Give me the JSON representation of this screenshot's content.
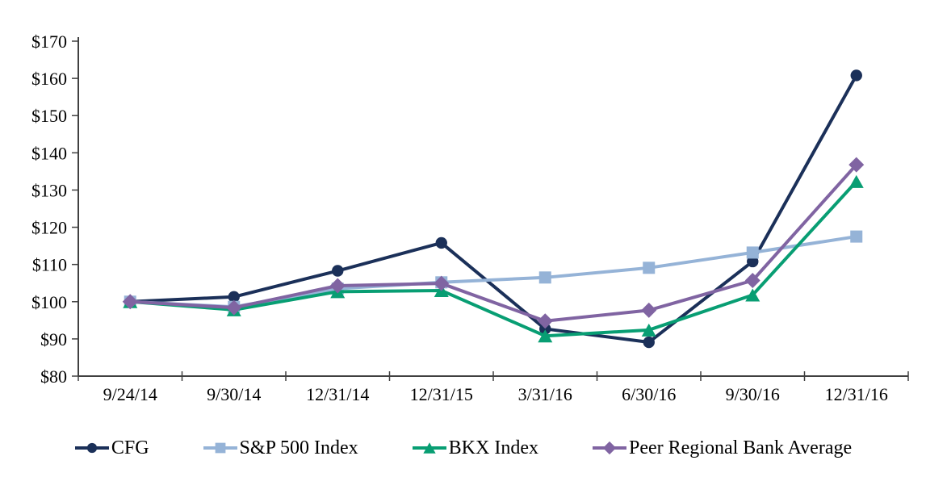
{
  "chart_data": {
    "type": "line",
    "title": "",
    "xlabel": "",
    "ylabel": "",
    "categories": [
      "9/24/14",
      "9/30/14",
      "12/31/14",
      "12/31/15",
      "3/31/16",
      "6/30/16",
      "9/30/16",
      "12/31/16"
    ],
    "series": [
      {
        "name": "CFG",
        "color": "#1B3059",
        "marker": "circle",
        "values": [
          100.0,
          101.3,
          108.3,
          115.8,
          92.7,
          89.1,
          110.8,
          160.8
        ]
      },
      {
        "name": "S&P 500 Index",
        "color": "#95B3D7",
        "marker": "square",
        "values": [
          100.0,
          98.6,
          103.5,
          105.2,
          106.5,
          109.1,
          113.2,
          117.5
        ]
      },
      {
        "name": "BKX Index",
        "color": "#089E73",
        "marker": "triangle",
        "values": [
          100.0,
          97.8,
          102.7,
          103.0,
          90.8,
          92.4,
          101.8,
          132.3
        ]
      },
      {
        "name": "Peer Regional Bank Average",
        "color": "#8064A2",
        "marker": "diamond",
        "values": [
          100.0,
          98.4,
          104.3,
          104.9,
          94.8,
          97.7,
          105.7,
          136.8
        ]
      }
    ],
    "ylim": [
      80,
      170
    ],
    "y_ticks": [
      80,
      90,
      100,
      110,
      120,
      130,
      140,
      150,
      160,
      170
    ],
    "y_tick_labels": [
      "$80",
      "$90",
      "$100",
      "$110",
      "$120",
      "$130",
      "$140",
      "$150",
      "$160",
      "$170"
    ],
    "grid": false,
    "legend_position": "bottom",
    "axis_color": "#404040",
    "text_color": "#000000"
  }
}
